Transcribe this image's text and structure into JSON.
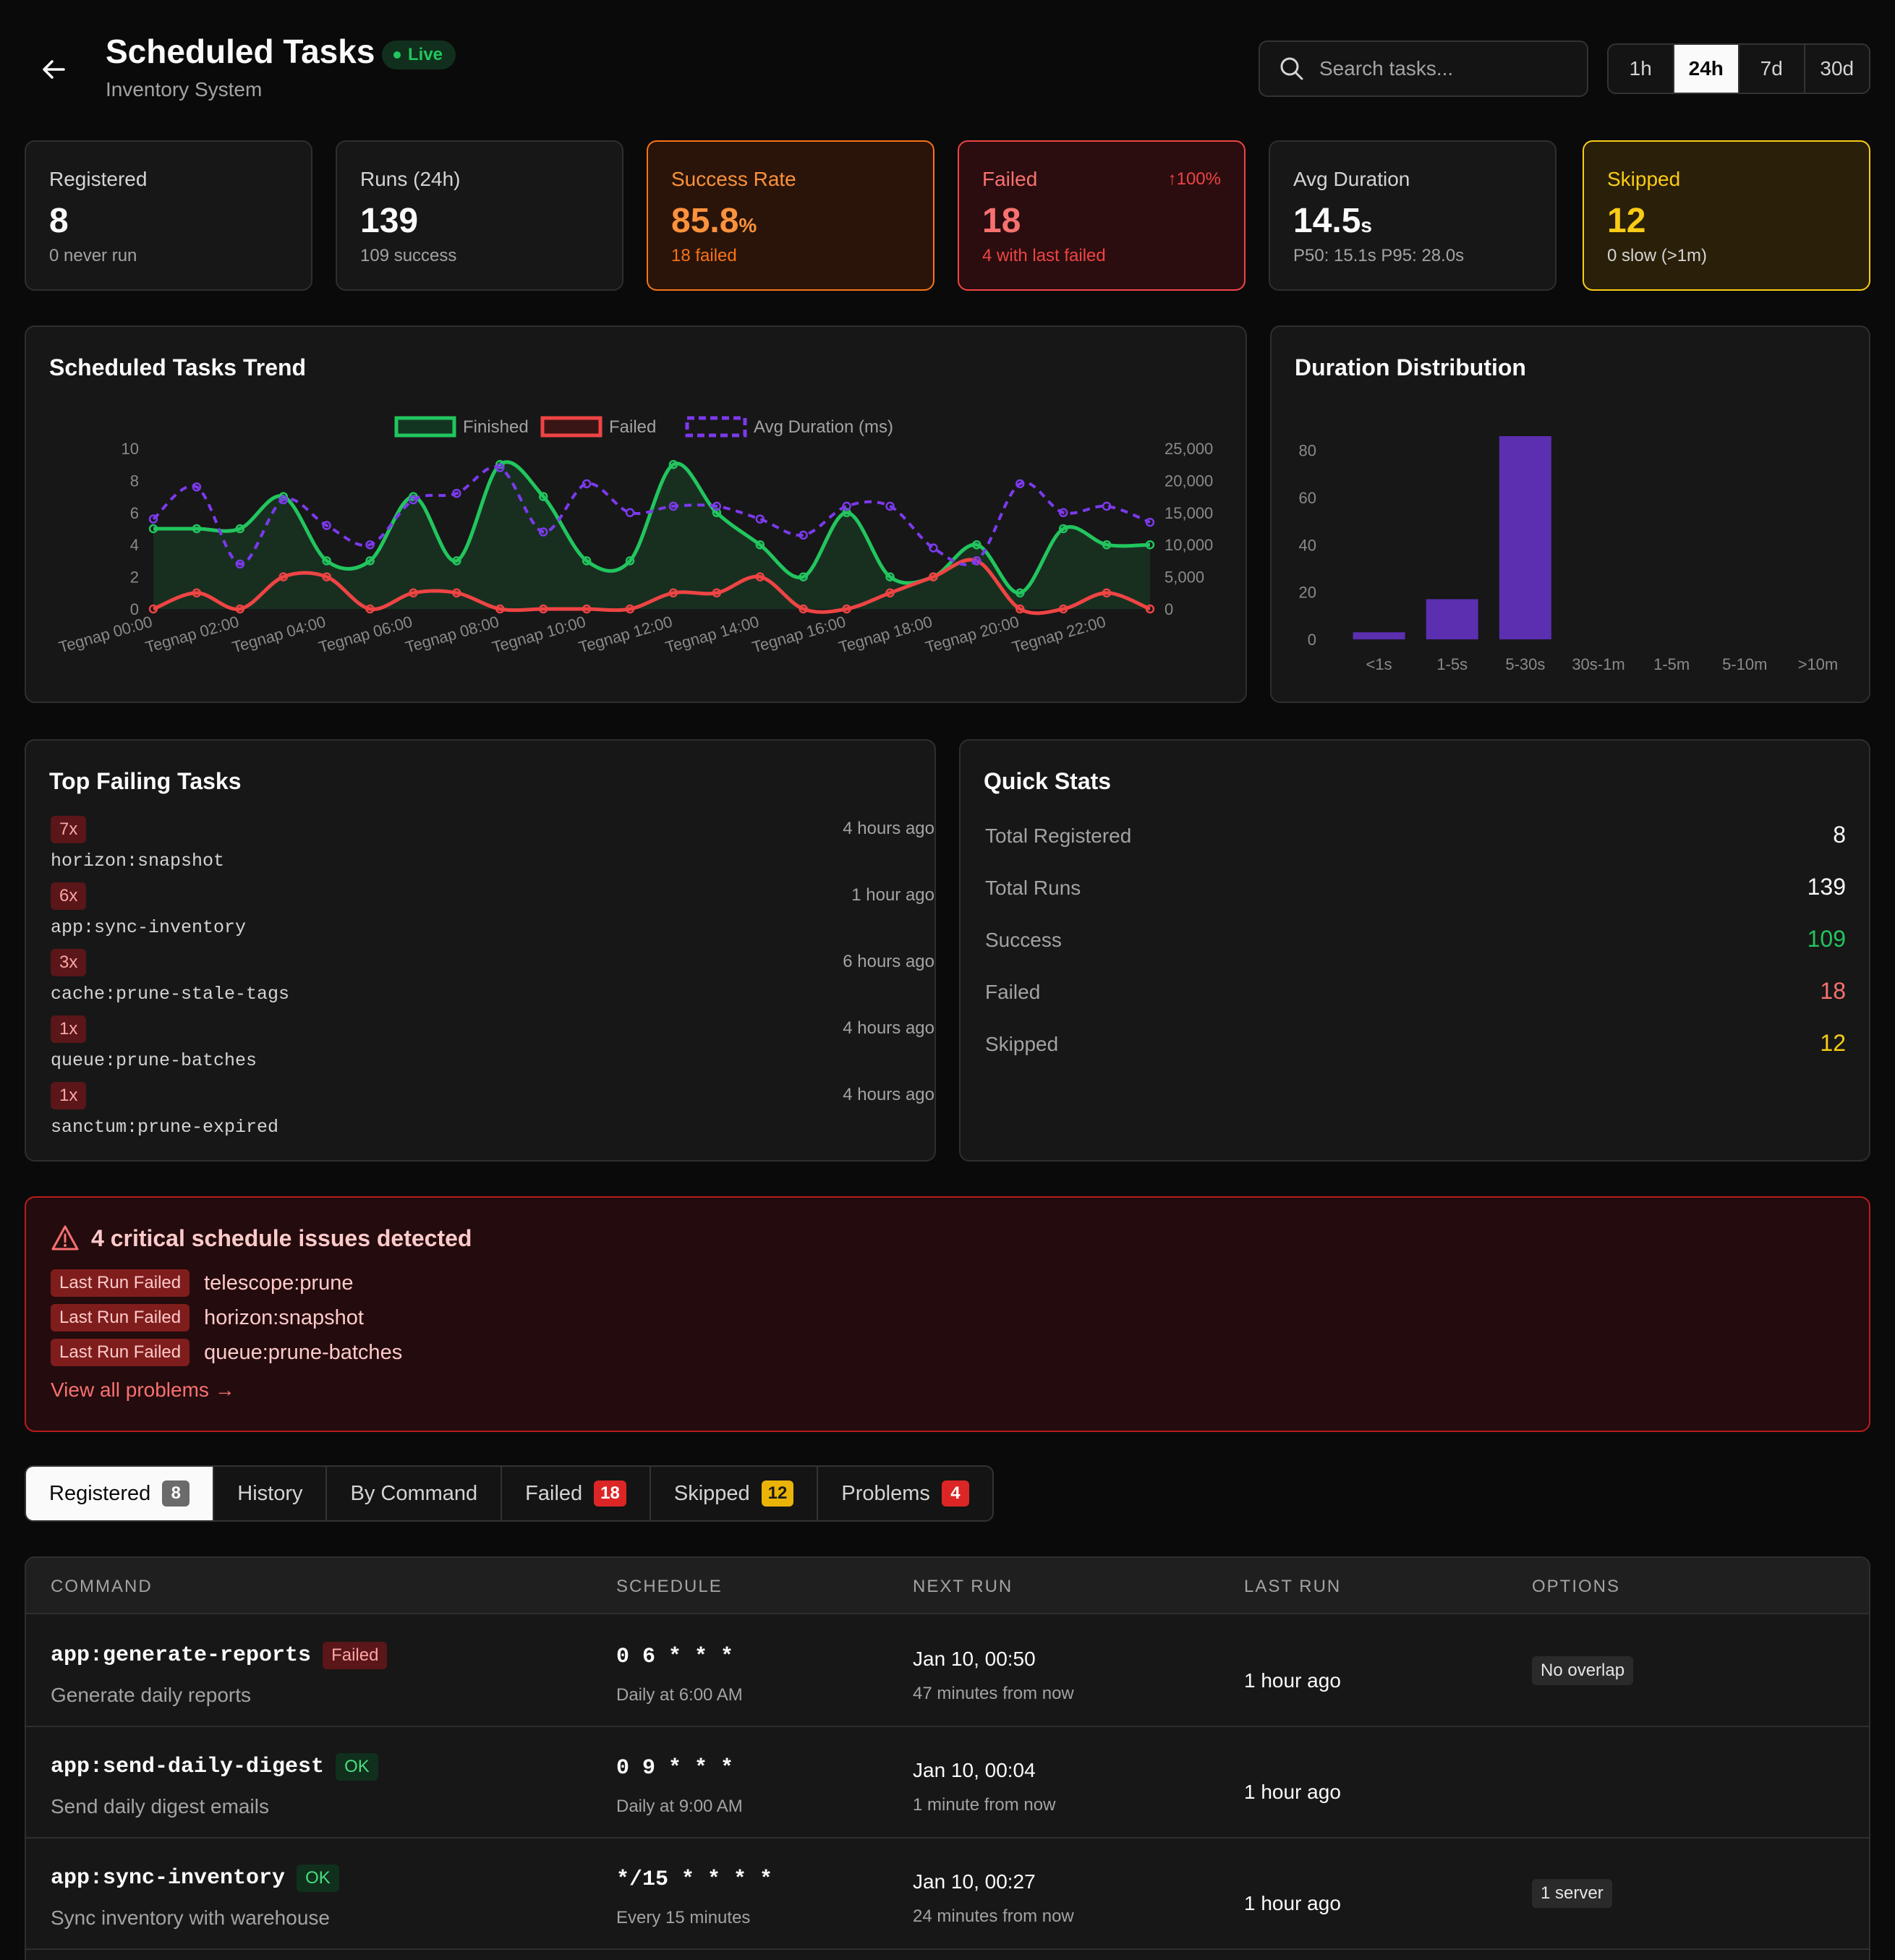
{
  "header": {
    "title": "Scheduled Tasks",
    "subtitle": "Inventory System",
    "live_label": "Live"
  },
  "search": {
    "placeholder": "Search tasks..."
  },
  "time_ranges": [
    "1h",
    "24h",
    "7d",
    "30d"
  ],
  "time_range_selected": "24h",
  "kpis": {
    "registered": {
      "label": "Registered",
      "value": "8",
      "sub": "0 never run"
    },
    "runs": {
      "label": "Runs (24h)",
      "value": "139",
      "sub": "109 success"
    },
    "success": {
      "label": "Success Rate",
      "value": "85.8",
      "unit": "%",
      "sub": "18 failed"
    },
    "failed": {
      "label": "Failed",
      "value": "18",
      "trend": "↑100%",
      "sub": "4 with last failed"
    },
    "duration": {
      "label": "Avg Duration",
      "value": "14.5",
      "unit": "s",
      "sub": "P50: 15.1s  P95: 28.0s"
    },
    "skipped": {
      "label": "Skipped",
      "value": "12",
      "sub": "0 slow (>1m)"
    }
  },
  "colors": {
    "finished": "#22c55e",
    "failed": "#ef4444",
    "duration": "#7c3aed",
    "bar": "#5b2fb0"
  },
  "trend_chart": {
    "title": "Scheduled Tasks Trend",
    "chart_data": {
      "type": "line",
      "title": "Scheduled Tasks Trend",
      "x_tick_labels": [
        "Tegnap 00:00",
        "Tegnap 02:00",
        "Tegnap 04:00",
        "Tegnap 06:00",
        "Tegnap 08:00",
        "Tegnap 10:00",
        "Tegnap 12:00",
        "Tegnap 14:00",
        "Tegnap 16:00",
        "Tegnap 18:00",
        "Tegnap 20:00",
        "Tegnap 22:00"
      ],
      "y_left": {
        "min": 0,
        "max": 10,
        "ticks": [
          "0",
          "2",
          "4",
          "6",
          "8",
          "10"
        ]
      },
      "y_right": {
        "min": 0,
        "max": 25000,
        "ticks": [
          "0",
          "5,000",
          "10,000",
          "15,000",
          "20,000",
          "25,000"
        ]
      },
      "series": [
        {
          "name": "Finished",
          "axis": "left",
          "values": [
            5,
            5,
            5,
            7,
            3,
            3,
            7,
            3,
            9,
            7,
            3,
            3,
            9,
            6,
            4,
            2,
            6,
            2,
            2,
            4,
            1,
            5,
            4,
            4
          ]
        },
        {
          "name": "Failed",
          "axis": "left",
          "values": [
            0,
            1,
            0,
            2,
            2,
            0,
            1,
            1,
            0,
            0,
            0,
            0,
            1,
            1,
            2,
            0,
            0,
            1,
            2,
            3,
            0,
            0,
            1,
            0
          ]
        },
        {
          "name": "Avg Duration (ms)",
          "axis": "right",
          "values": [
            14000,
            19000,
            7000,
            17000,
            13000,
            10000,
            17000,
            18000,
            22000,
            12000,
            19500,
            15000,
            16000,
            16000,
            14000,
            11500,
            16000,
            16000,
            9500,
            7500,
            19500,
            15000,
            16000,
            13500
          ]
        }
      ]
    }
  },
  "duration_chart": {
    "title": "Duration Distribution",
    "chart_data": {
      "type": "bar",
      "title": "Duration Distribution",
      "categories": [
        "<1s",
        "1-5s",
        "5-30s",
        "30s-1m",
        "1-5m",
        "5-10m",
        ">10m"
      ],
      "values": [
        3,
        17,
        86,
        0,
        0,
        0,
        0
      ],
      "ylim": [
        0,
        90
      ],
      "y_ticks": [
        "0",
        "20",
        "40",
        "60",
        "80"
      ]
    }
  },
  "top_failing": {
    "title": "Top Failing Tasks",
    "items": [
      {
        "count": "7x",
        "command": "horizon:snapshot",
        "ago": "4 hours ago"
      },
      {
        "count": "6x",
        "command": "app:sync-inventory",
        "ago": "1 hour ago"
      },
      {
        "count": "3x",
        "command": "cache:prune-stale-tags",
        "ago": "6 hours ago"
      },
      {
        "count": "1x",
        "command": "queue:prune-batches",
        "ago": "4 hours ago"
      },
      {
        "count": "1x",
        "command": "sanctum:prune-expired",
        "ago": "4 hours ago"
      }
    ]
  },
  "quick_stats": {
    "title": "Quick Stats",
    "rows": [
      {
        "label": "Total Registered",
        "value": "8",
        "color": "#fafafa"
      },
      {
        "label": "Total Runs",
        "value": "139",
        "color": "#fafafa"
      },
      {
        "label": "Success",
        "value": "109",
        "color": "#22c55e"
      },
      {
        "label": "Failed",
        "value": "18",
        "color": "#f87171"
      },
      {
        "label": "Skipped",
        "value": "12",
        "color": "#facc15"
      }
    ]
  },
  "alert": {
    "title": "4 critical schedule issues detected",
    "issues": [
      {
        "tag": "Last Run Failed",
        "name": "telescope:prune"
      },
      {
        "tag": "Last Run Failed",
        "name": "horizon:snapshot"
      },
      {
        "tag": "Last Run Failed",
        "name": "queue:prune-batches"
      }
    ],
    "link": "View all problems →"
  },
  "tabs": [
    {
      "label": "Registered",
      "badge": "8"
    },
    {
      "label": "History",
      "badge": ""
    },
    {
      "label": "By Command",
      "badge": ""
    },
    {
      "label": "Failed",
      "badge": "18"
    },
    {
      "label": "Skipped",
      "badge": "12"
    },
    {
      "label": "Problems",
      "badge": "4"
    }
  ],
  "table": {
    "headers": {
      "command": "COMMAND",
      "schedule": "SCHEDULE",
      "next_run": "NEXT RUN",
      "last_run": "LAST RUN",
      "options": "OPTIONS"
    },
    "rows": [
      {
        "command": "app:generate-reports",
        "status": "Failed",
        "description": "Generate daily reports",
        "cron": "0 6 * * *",
        "cron_human": "Daily at 6:00 AM",
        "next": "Jan 10, 00:50",
        "next_rel": "47 minutes from now",
        "last": "1 hour ago",
        "option": "No overlap"
      },
      {
        "command": "app:send-daily-digest",
        "status": "OK",
        "description": "Send daily digest emails",
        "cron": "0 9 * * *",
        "cron_human": "Daily at 9:00 AM",
        "next": "Jan 10, 00:04",
        "next_rel": "1 minute from now",
        "last": "1 hour ago",
        "option": ""
      },
      {
        "command": "app:sync-inventory",
        "status": "OK",
        "description": "Sync inventory with warehouse",
        "cron": "*/15 * * * *",
        "cron_human": "Every 15 minutes",
        "next": "Jan 10, 00:27",
        "next_rel": "24 minutes from now",
        "last": "1 hour ago",
        "option": "1 server"
      }
    ]
  }
}
